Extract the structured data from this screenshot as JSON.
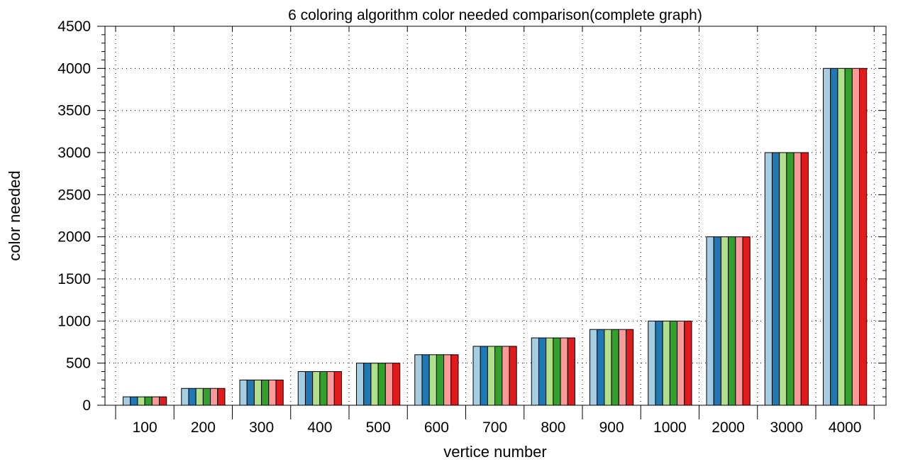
{
  "chart_data": {
    "type": "bar",
    "title": "6 coloring algorithm color needed comparison(complete graph)",
    "xlabel": "vertice number",
    "ylabel": "color needed",
    "ylim": [
      0,
      4500
    ],
    "y_ticks": [
      "0",
      "500",
      "1000",
      "1500",
      "2000",
      "2500",
      "3000",
      "3500",
      "4000",
      "4500"
    ],
    "y_tick_values": [
      0,
      500,
      1000,
      1500,
      2000,
      2500,
      3000,
      3500,
      4000,
      4500
    ],
    "categories": [
      "100",
      "200",
      "300",
      "400",
      "500",
      "600",
      "700",
      "800",
      "900",
      "1000",
      "2000",
      "3000",
      "4000"
    ],
    "grid": "dotted",
    "legend": "none",
    "series": [
      {
        "color": "#a6cee3",
        "values": [
          100,
          200,
          300,
          400,
          500,
          600,
          700,
          800,
          900,
          1000,
          2000,
          3000,
          4000
        ]
      },
      {
        "color": "#1f78b4",
        "values": [
          100,
          200,
          300,
          400,
          500,
          600,
          700,
          800,
          900,
          1000,
          2000,
          3000,
          4000
        ]
      },
      {
        "color": "#b2df8a",
        "values": [
          100,
          200,
          300,
          400,
          500,
          600,
          700,
          800,
          900,
          1000,
          2000,
          3000,
          4000
        ]
      },
      {
        "color": "#33a02c",
        "values": [
          100,
          200,
          300,
          400,
          500,
          600,
          700,
          800,
          900,
          1000,
          2000,
          3000,
          4000
        ]
      },
      {
        "color": "#fb9a99",
        "values": [
          100,
          200,
          300,
          400,
          500,
          600,
          700,
          800,
          900,
          1000,
          2000,
          3000,
          4000
        ]
      },
      {
        "color": "#e31a1c",
        "values": [
          100,
          200,
          300,
          400,
          500,
          600,
          700,
          800,
          900,
          1000,
          2000,
          3000,
          4000
        ]
      }
    ]
  }
}
